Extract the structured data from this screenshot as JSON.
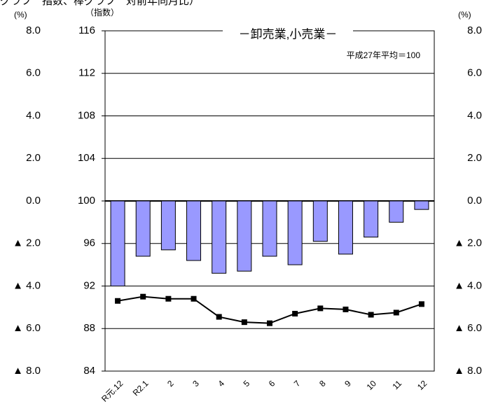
{
  "chart_data": {
    "type": "bar_line",
    "title": "グラフ　指数、棒グラフ　対前年同月比）",
    "y_unit": "(%)",
    "y2_unit": "（指数）",
    "legend_text": "－卸売業,小売業－",
    "note": "平成27年平均＝100",
    "categories": [
      "R元.12",
      "R2.1",
      "2",
      "3",
      "4",
      "5",
      "6",
      "7",
      "8",
      "9",
      "10",
      "11",
      "12"
    ],
    "ylim": [
      -8,
      8
    ],
    "yticks": [
      8,
      6,
      4,
      2,
      0,
      {
        "value": -2,
        "label": "▲ 2.0"
      },
      {
        "value": -4,
        "label": "▲ 4.0"
      },
      {
        "value": -6,
        "label": "▲ 6.0"
      },
      {
        "value": -8,
        "label": "▲ 8.0"
      }
    ],
    "y_tick_labels": [
      "8.0",
      "6.0",
      "4.0",
      "2.0",
      "0.0"
    ],
    "y2lim": [
      84,
      116
    ],
    "y2ticks": [
      116,
      112,
      108,
      104,
      100,
      96,
      92,
      88,
      84
    ],
    "series": [
      {
        "kind": "bar",
        "color": "#9999ff",
        "values": [
          -4.0,
          -2.6,
          -2.3,
          -2.8,
          -3.4,
          -3.3,
          -2.6,
          -3.0,
          -1.9,
          -2.5,
          -1.7,
          -1.0,
          -0.4
        ]
      },
      {
        "kind": "line",
        "axis": "y2",
        "color": "#000000",
        "values": [
          90.6,
          91.0,
          90.8,
          90.8,
          89.1,
          88.6,
          88.5,
          89.4,
          89.9,
          89.8,
          89.3,
          89.5,
          90.3
        ]
      }
    ]
  }
}
